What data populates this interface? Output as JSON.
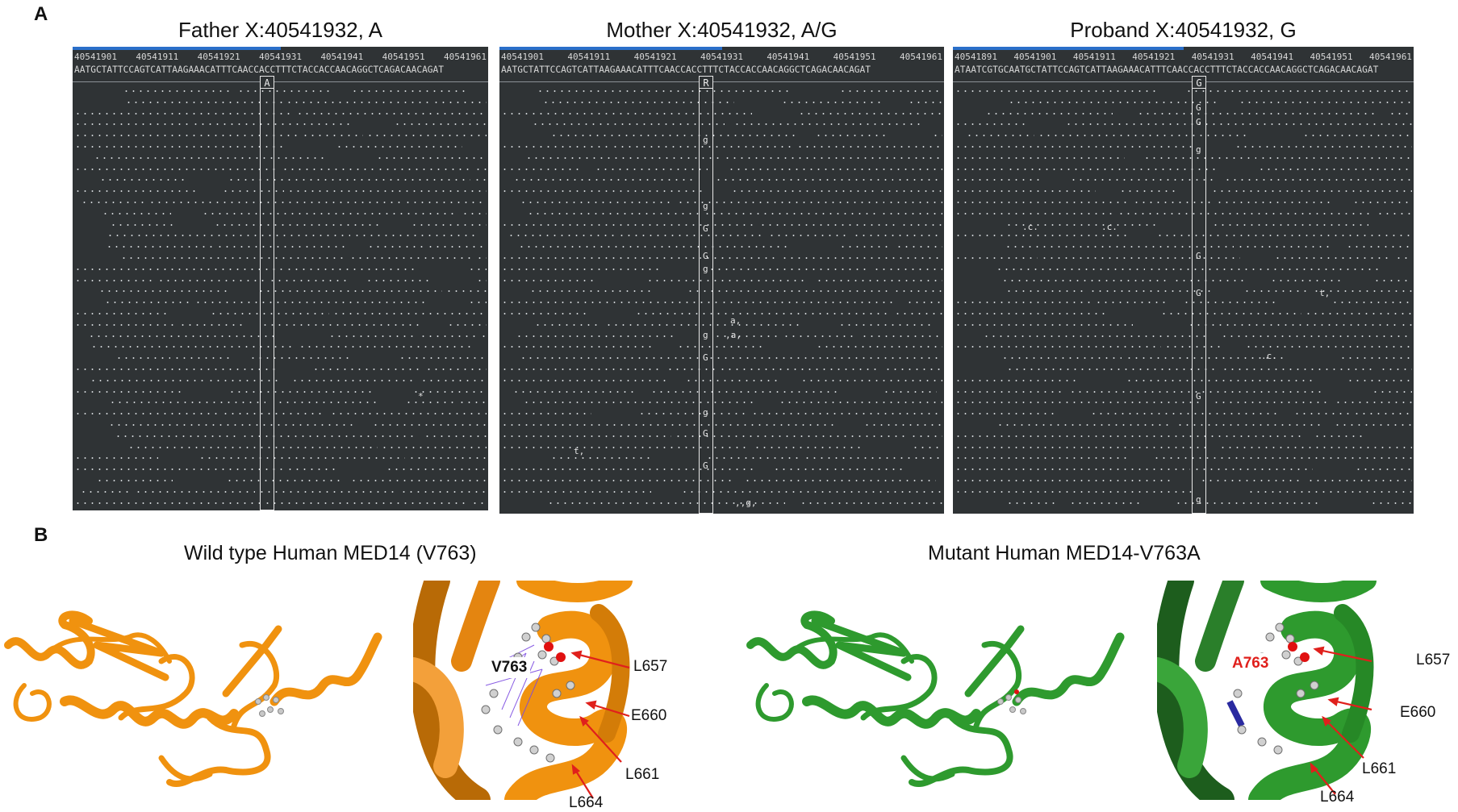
{
  "panel_a": {
    "letter": "A",
    "tracks": [
      {
        "title": "Father X:40541932, A",
        "ruler": [
          "40541901",
          "40541911",
          "40541921",
          "40541931",
          "40541941",
          "40541951",
          "40541961"
        ],
        "sequence": "AATGCTATTCCAGTCATTAAGAAACATTTCAACCACCTTTCTACCACCAACAGGCTCAGACAACAGAT",
        "base_label": "A",
        "calls": [
          {
            "text": "*"
          }
        ]
      },
      {
        "title": "Mother X:40541932, A/G",
        "ruler": [
          "40541901",
          "40541911",
          "40541921",
          "40541931",
          "40541941",
          "40541951",
          "40541961"
        ],
        "sequence": "AATGCTATTCCAGTCATTAAGAAACATTTCAACCACCTTTCTACCACCAACAGGCTCAGACAACAGAT",
        "base_label": "R",
        "calls": [
          {
            "text": "g"
          },
          {
            "text": "g"
          },
          {
            "text": "G"
          },
          {
            "text": "G"
          },
          {
            "text": "g"
          },
          {
            "text": "a,"
          },
          {
            "text": ",a,"
          },
          {
            "text": "g"
          },
          {
            "text": "G"
          },
          {
            "text": "g"
          },
          {
            "text": "G"
          },
          {
            "text": "t,"
          },
          {
            "text": "G"
          },
          {
            "text": ",,g,"
          }
        ]
      },
      {
        "title": "Proband X:40541932, G",
        "ruler": [
          "40541891",
          "40541901",
          "40541911",
          "40541921",
          "40541931",
          "40541941",
          "40541951",
          "40541961"
        ],
        "sequence": "ATAATCGTGCAATGCTATTCCAGTCATTAAGAAACATTTCAACCACCTTTCTACCACCAACAGGCTCAGACAACAGAT",
        "base_label": "G",
        "calls": [
          {
            "text": "G"
          },
          {
            "text": "G"
          },
          {
            "text": "g"
          },
          {
            "text": "G"
          },
          {
            "text": "G"
          },
          {
            "text": ".c."
          },
          {
            "text": ".c."
          },
          {
            "text": "t,"
          },
          {
            "text": ".c."
          },
          {
            "text": "G"
          },
          {
            "text": "g"
          }
        ]
      }
    ]
  },
  "panel_b": {
    "letter": "B",
    "wild_type": {
      "title": "Wild type Human MED14 (V763)",
      "color": "#f0920f",
      "residue_tag": "V763",
      "labels": [
        "L657",
        "E660",
        "L661",
        "L664"
      ]
    },
    "mutant": {
      "title": "Mutant Human MED14-V763A",
      "color": "#2e9a2e",
      "residue_tag": "A763",
      "labels": [
        "L657",
        "E660",
        "L661",
        "L664"
      ]
    },
    "arrow_color": "#e0201c"
  }
}
